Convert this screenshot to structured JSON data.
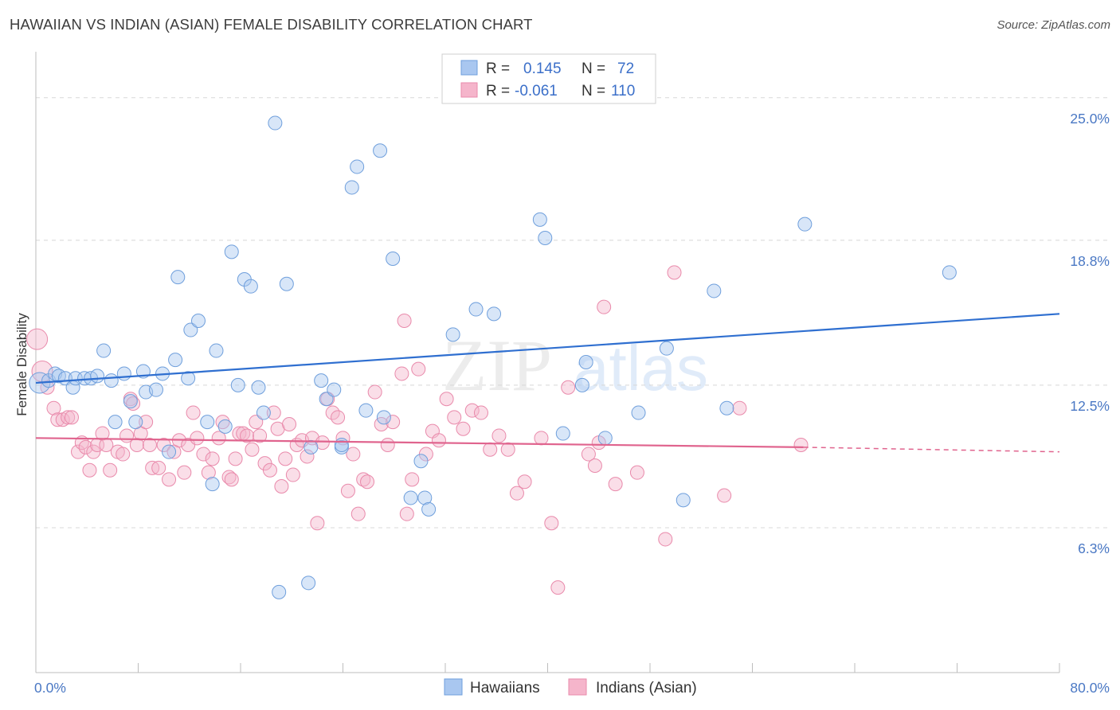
{
  "title": "HAWAIIAN VS INDIAN (ASIAN) FEMALE DISABILITY CORRELATION CHART",
  "source": "Source: ZipAtlas.com",
  "watermark": {
    "zip": "ZIP",
    "atlas": "atlas"
  },
  "colors": {
    "hawaiians_fill": "#a9c7f0",
    "hawaiians_stroke": "#6f9fdc",
    "hawaiians_line": "#2f6fd0",
    "indians_fill": "#f5b5cb",
    "indians_stroke": "#e98aab",
    "indians_line": "#e0648e",
    "tick_text": "#4a78c4",
    "grid": "#d8d8d8"
  },
  "legend": {
    "rows": [
      {
        "r_label": "R =",
        "r_value": "0.145",
        "n_label": "N =",
        "n_value": "72"
      },
      {
        "r_label": "R =",
        "r_value": "-0.061",
        "n_label": "N =",
        "n_value": "110"
      }
    ]
  },
  "chart_data": {
    "type": "scatter",
    "title": "HAWAIIAN VS INDIAN (ASIAN) FEMALE DISABILITY CORRELATION CHART",
    "xlabel": "",
    "ylabel": "Female Disability",
    "xlim": [
      0,
      80
    ],
    "ylim": [
      0,
      27
    ],
    "x_tick_labels": [
      "0.0%",
      "80.0%"
    ],
    "y_ticks": [
      6.3,
      12.5,
      18.8,
      25.0
    ],
    "y_tick_labels": [
      "6.3%",
      "12.5%",
      "18.8%",
      "25.0%"
    ],
    "grid": true,
    "series": [
      {
        "name": "Hawaiians",
        "R": 0.145,
        "N": 72,
        "trend": {
          "x0": 0,
          "y0": 12.6,
          "x1": 80,
          "y1": 15.6
        },
        "points": [
          [
            0.3,
            12.6
          ],
          [
            1.0,
            12.7
          ],
          [
            1.5,
            13.0
          ],
          [
            1.8,
            12.9
          ],
          [
            2.3,
            12.8
          ],
          [
            2.9,
            12.4
          ],
          [
            3.1,
            12.8
          ],
          [
            3.8,
            12.8
          ],
          [
            4.3,
            12.8
          ],
          [
            4.8,
            12.9
          ],
          [
            5.3,
            14.0
          ],
          [
            5.9,
            12.7
          ],
          [
            6.2,
            10.9
          ],
          [
            6.9,
            13.0
          ],
          [
            7.4,
            11.8
          ],
          [
            7.8,
            10.9
          ],
          [
            8.4,
            13.1
          ],
          [
            8.6,
            12.2
          ],
          [
            9.4,
            12.3
          ],
          [
            9.9,
            13.0
          ],
          [
            10.4,
            9.6
          ],
          [
            10.9,
            13.6
          ],
          [
            11.1,
            17.2
          ],
          [
            11.9,
            12.8
          ],
          [
            12.1,
            14.9
          ],
          [
            12.7,
            15.3
          ],
          [
            13.4,
            10.9
          ],
          [
            13.8,
            8.2
          ],
          [
            14.1,
            14.0
          ],
          [
            14.8,
            10.7
          ],
          [
            15.3,
            18.3
          ],
          [
            15.8,
            12.5
          ],
          [
            16.3,
            17.1
          ],
          [
            16.8,
            16.8
          ],
          [
            17.4,
            12.4
          ],
          [
            17.8,
            11.3
          ],
          [
            18.7,
            23.9
          ],
          [
            19.0,
            3.5
          ],
          [
            19.6,
            16.9
          ],
          [
            21.3,
            3.9
          ],
          [
            21.5,
            9.8
          ],
          [
            22.3,
            12.7
          ],
          [
            22.7,
            11.9
          ],
          [
            23.3,
            12.3
          ],
          [
            23.9,
            9.8
          ],
          [
            24.7,
            21.1
          ],
          [
            25.1,
            22.0
          ],
          [
            25.8,
            11.4
          ],
          [
            26.9,
            22.7
          ],
          [
            27.2,
            11.1
          ],
          [
            27.9,
            18.0
          ],
          [
            29.3,
            7.6
          ],
          [
            30.1,
            9.2
          ],
          [
            30.4,
            7.6
          ],
          [
            30.7,
            7.1
          ],
          [
            32.6,
            14.7
          ],
          [
            34.4,
            15.8
          ],
          [
            35.8,
            15.6
          ],
          [
            39.4,
            19.7
          ],
          [
            39.8,
            18.9
          ],
          [
            41.2,
            10.4
          ],
          [
            42.7,
            12.5
          ],
          [
            43.0,
            13.5
          ],
          [
            44.5,
            10.2
          ],
          [
            47.1,
            11.3
          ],
          [
            49.3,
            14.1
          ],
          [
            50.6,
            7.5
          ],
          [
            53.0,
            16.6
          ],
          [
            54.0,
            11.5
          ],
          [
            60.1,
            19.5
          ],
          [
            71.4,
            17.4
          ],
          [
            23.9,
            9.9
          ]
        ]
      },
      {
        "name": "Indians (Asian)",
        "R": -0.061,
        "N": 110,
        "trend": {
          "x0": 0,
          "y0": 10.2,
          "x1": 60,
          "y1": 9.8,
          "dash_x1": 80,
          "dash_y1": 9.6
        },
        "points": [
          [
            0.1,
            14.5
          ],
          [
            0.5,
            13.1
          ],
          [
            0.9,
            12.4
          ],
          [
            1.4,
            11.5
          ],
          [
            1.7,
            11.0
          ],
          [
            2.1,
            11.0
          ],
          [
            2.5,
            11.1
          ],
          [
            2.8,
            11.1
          ],
          [
            3.3,
            9.6
          ],
          [
            3.6,
            10.0
          ],
          [
            3.9,
            9.8
          ],
          [
            4.2,
            8.8
          ],
          [
            4.5,
            9.6
          ],
          [
            4.8,
            9.9
          ],
          [
            5.2,
            10.4
          ],
          [
            5.5,
            9.9
          ],
          [
            5.8,
            8.8
          ],
          [
            6.4,
            9.6
          ],
          [
            6.8,
            9.5
          ],
          [
            7.1,
            10.3
          ],
          [
            7.4,
            11.9
          ],
          [
            7.6,
            11.7
          ],
          [
            7.9,
            9.9
          ],
          [
            8.2,
            10.4
          ],
          [
            8.6,
            10.9
          ],
          [
            8.9,
            9.9
          ],
          [
            9.1,
            8.9
          ],
          [
            9.6,
            8.9
          ],
          [
            10.0,
            9.9
          ],
          [
            10.4,
            8.4
          ],
          [
            10.8,
            9.6
          ],
          [
            11.2,
            10.1
          ],
          [
            11.6,
            8.7
          ],
          [
            11.9,
            9.9
          ],
          [
            12.3,
            11.3
          ],
          [
            12.6,
            10.2
          ],
          [
            13.1,
            9.5
          ],
          [
            13.5,
            8.7
          ],
          [
            13.8,
            9.3
          ],
          [
            14.3,
            10.2
          ],
          [
            14.6,
            10.9
          ],
          [
            15.1,
            8.5
          ],
          [
            15.3,
            8.4
          ],
          [
            15.6,
            9.3
          ],
          [
            15.9,
            10.4
          ],
          [
            16.2,
            10.4
          ],
          [
            16.5,
            10.3
          ],
          [
            16.9,
            9.7
          ],
          [
            17.2,
            10.9
          ],
          [
            17.5,
            10.3
          ],
          [
            17.9,
            9.1
          ],
          [
            18.3,
            8.8
          ],
          [
            18.6,
            11.3
          ],
          [
            18.9,
            10.6
          ],
          [
            19.2,
            8.1
          ],
          [
            19.5,
            9.3
          ],
          [
            19.8,
            10.8
          ],
          [
            20.1,
            8.6
          ],
          [
            20.4,
            9.9
          ],
          [
            20.8,
            10.1
          ],
          [
            21.2,
            9.4
          ],
          [
            21.6,
            10.2
          ],
          [
            22.0,
            6.5
          ],
          [
            22.4,
            10.0
          ],
          [
            22.8,
            11.9
          ],
          [
            23.2,
            11.3
          ],
          [
            23.6,
            11.1
          ],
          [
            24.0,
            10.2
          ],
          [
            24.4,
            7.9
          ],
          [
            24.8,
            9.5
          ],
          [
            25.2,
            6.9
          ],
          [
            25.6,
            8.4
          ],
          [
            25.9,
            8.3
          ],
          [
            26.5,
            12.2
          ],
          [
            27.0,
            10.8
          ],
          [
            27.5,
            9.9
          ],
          [
            27.9,
            10.9
          ],
          [
            28.6,
            13.0
          ],
          [
            29.0,
            6.9
          ],
          [
            29.4,
            8.4
          ],
          [
            29.9,
            13.2
          ],
          [
            30.5,
            9.5
          ],
          [
            31.0,
            10.5
          ],
          [
            31.5,
            10.1
          ],
          [
            32.1,
            11.9
          ],
          [
            32.7,
            11.1
          ],
          [
            33.4,
            10.6
          ],
          [
            34.1,
            11.4
          ],
          [
            34.8,
            11.3
          ],
          [
            35.5,
            9.7
          ],
          [
            36.2,
            10.3
          ],
          [
            36.9,
            9.7
          ],
          [
            37.6,
            7.8
          ],
          [
            38.2,
            8.3
          ],
          [
            39.5,
            10.2
          ],
          [
            40.3,
            6.5
          ],
          [
            40.8,
            3.7
          ],
          [
            41.6,
            12.4
          ],
          [
            43.2,
            9.5
          ],
          [
            43.7,
            9.0
          ],
          [
            44.4,
            15.9
          ],
          [
            45.3,
            8.2
          ],
          [
            47.0,
            8.7
          ],
          [
            49.2,
            5.8
          ],
          [
            49.9,
            17.4
          ],
          [
            53.8,
            7.7
          ],
          [
            55.0,
            11.5
          ],
          [
            59.8,
            9.9
          ],
          [
            44.0,
            10.0
          ],
          [
            28.8,
            15.3
          ]
        ]
      }
    ]
  }
}
